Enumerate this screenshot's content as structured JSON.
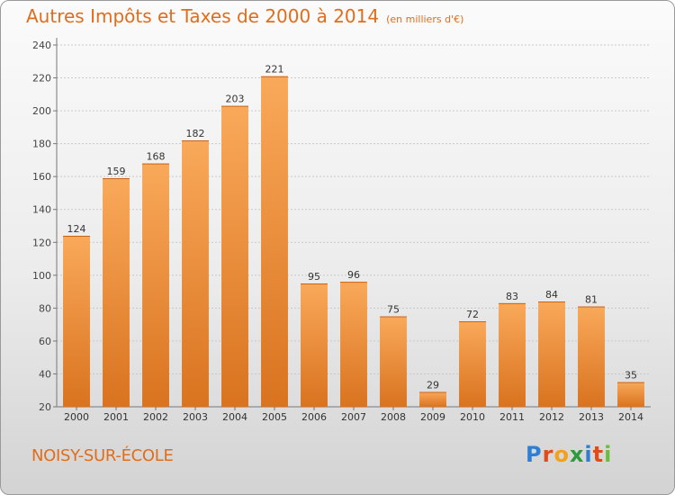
{
  "chart_data": {
    "type": "bar",
    "title": "Autres Impôts et Taxes de 2000 à 2014",
    "subtitle": "(en milliers d'€)",
    "categories": [
      "2000",
      "2001",
      "2002",
      "2003",
      "2004",
      "2005",
      "2006",
      "2007",
      "2008",
      "2009",
      "2010",
      "2011",
      "2012",
      "2013",
      "2014"
    ],
    "values": [
      124,
      159,
      168,
      182,
      203,
      221,
      95,
      96,
      75,
      29,
      72,
      83,
      84,
      81,
      35
    ],
    "ylim": [
      20,
      240
    ],
    "yticks": [
      20,
      40,
      60,
      80,
      100,
      120,
      140,
      160,
      180,
      200,
      220,
      240
    ],
    "grid": true,
    "bar_color": "#f0862a"
  },
  "footer": {
    "commune": "NOISY-SUR-ÉCOLE",
    "logo_letters": [
      {
        "ch": "P",
        "color": "#2e7fd1"
      },
      {
        "ch": "r",
        "color": "#e24a1b"
      },
      {
        "ch": "o",
        "color": "#f0a21c"
      },
      {
        "ch": "x",
        "color": "#2e9a3b"
      },
      {
        "ch": "i",
        "color": "#2e7fd1"
      },
      {
        "ch": "t",
        "color": "#e24a1b"
      },
      {
        "ch": "i",
        "color": "#6abf3a"
      }
    ]
  }
}
